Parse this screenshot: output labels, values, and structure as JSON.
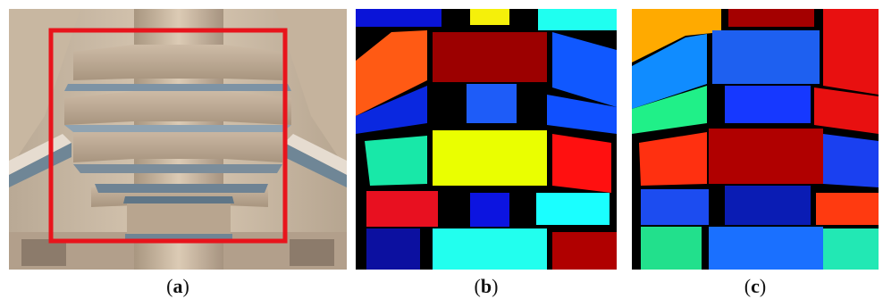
{
  "figure": {
    "panels": [
      {
        "id": "a",
        "label_prefix": "(",
        "label": "a",
        "label_suffix": ")"
      },
      {
        "id": "b",
        "label_prefix": "(",
        "label": "b",
        "label_suffix": ")"
      },
      {
        "id": "c",
        "label_prefix": "(",
        "label": "c",
        "label_suffix": ")"
      }
    ],
    "colors": {
      "stone_light": "#d8c6b1",
      "stone_mid": "#bba68f",
      "stone_dark": "#8f7d6a",
      "shadow_blue": "#5d7a8f",
      "highlight_box": "#e8141c",
      "seg_black": "#000000"
    }
  }
}
